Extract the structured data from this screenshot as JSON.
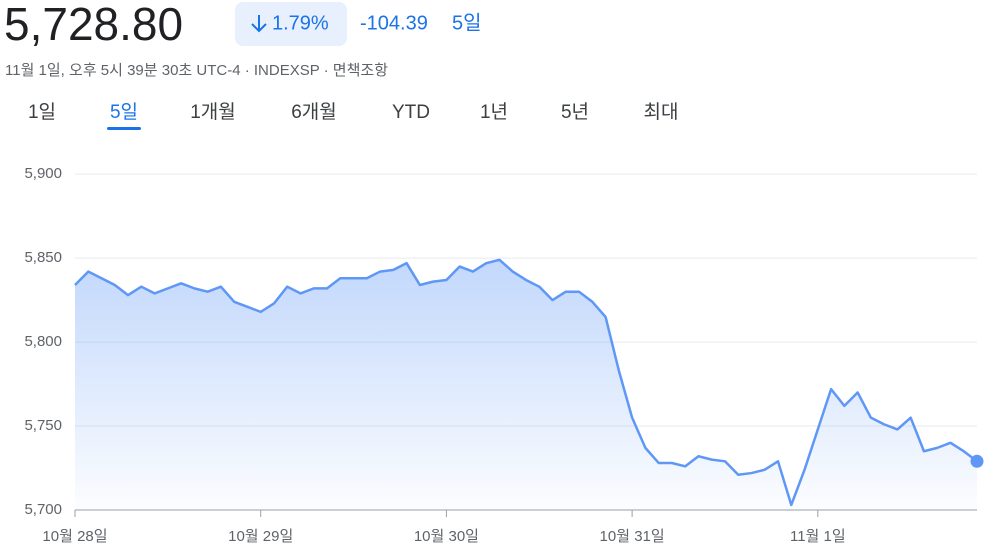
{
  "header": {
    "price": "5,728.80",
    "change_percent": "1.79%",
    "change": "-104.39",
    "period": "5일",
    "subtitle": "11월 1일, 오후 5시 39분 30초 UTC-4 · INDEXSP · 면책조항"
  },
  "tabs": {
    "items": [
      "1일",
      "5일",
      "1개월",
      "6개월",
      "YTD",
      "1년",
      "5년",
      "최대"
    ],
    "selected": 1
  },
  "chart_data": {
    "type": "line",
    "x": [
      0,
      1,
      2,
      3,
      4,
      5,
      6,
      7,
      8,
      9,
      10,
      11,
      12,
      13,
      14,
      15,
      16,
      17,
      18,
      19,
      20,
      21,
      22,
      23,
      24,
      25,
      26,
      27,
      28,
      29,
      30,
      31,
      32,
      33,
      34,
      35,
      36,
      37,
      38,
      39,
      40,
      41,
      42,
      43,
      44,
      45,
      46,
      47,
      48,
      49,
      50,
      51,
      52,
      53,
      54,
      55,
      56,
      57,
      58,
      59,
      60,
      61,
      62,
      63,
      64,
      65,
      66,
      67,
      68
    ],
    "series": [
      {
        "color": "#5e97f6",
        "values": [
          5834,
          5842,
          5838,
          5834,
          5828,
          5833,
          5829,
          5832,
          5835,
          5832,
          5830,
          5833,
          5824,
          5821,
          5818,
          5823,
          5833,
          5829,
          5832,
          5832,
          5838,
          5838,
          5838,
          5842,
          5843,
          5847,
          5834,
          5836,
          5837,
          5845,
          5842,
          5847,
          5849,
          5842,
          5837,
          5833,
          5825,
          5830,
          5830,
          5824,
          5815,
          5783,
          5755,
          5737,
          5728,
          5728,
          5726,
          5732,
          5730,
          5729,
          5721,
          5722,
          5724,
          5729,
          5703,
          5724,
          5748,
          5772,
          5762,
          5770,
          5755,
          5751,
          5748,
          5755,
          5735,
          5737,
          5740,
          5735,
          5729
        ]
      }
    ],
    "xlim": [
      0,
      68
    ],
    "xticks": [
      {
        "value": 0,
        "label": "10월 28일"
      },
      {
        "value": 14,
        "label": "10월 29일"
      },
      {
        "value": 28,
        "label": "10월 30일"
      },
      {
        "value": 42,
        "label": "10월 31일"
      },
      {
        "value": 56,
        "label": "11월 1일"
      }
    ],
    "ylim": [
      5700,
      5915
    ],
    "yticks": [
      {
        "value": 5700,
        "label": "5,700"
      },
      {
        "value": 5750,
        "label": "5,750"
      },
      {
        "value": 5800,
        "label": "5,800"
      },
      {
        "value": 5850,
        "label": "5,850"
      },
      {
        "value": 5900,
        "label": "5,900"
      }
    ],
    "grid": true
  }
}
